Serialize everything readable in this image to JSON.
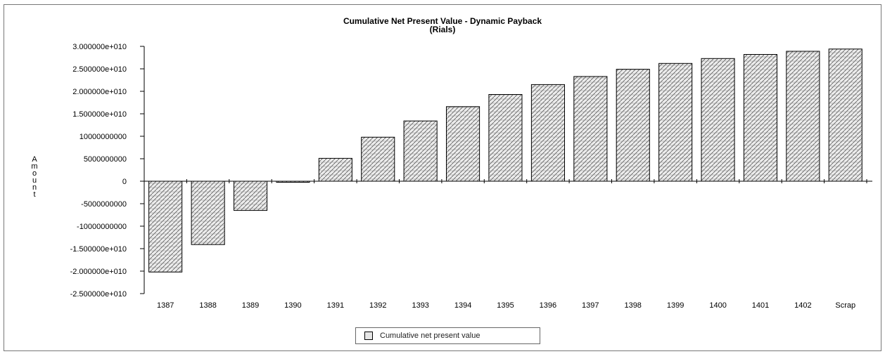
{
  "chart_data": {
    "type": "bar",
    "title": "Cumulative Net Present Value - Dynamic Payback",
    "subtitle": "(Rials)",
    "xlabel": "",
    "ylabel": "Amount",
    "categories": [
      "1387",
      "1388",
      "1389",
      "1390",
      "1391",
      "1392",
      "1393",
      "1394",
      "1395",
      "1396",
      "1397",
      "1398",
      "1399",
      "1400",
      "1401",
      "1402",
      "Scrap"
    ],
    "series": [
      {
        "name": "Cumulative net present value",
        "values": [
          -20200000000,
          -14100000000,
          -6500000000,
          -200000000,
          5100000000,
          9800000000,
          13400000000,
          16600000000,
          19300000000,
          21500000000,
          23300000000,
          24900000000,
          26200000000,
          27300000000,
          28200000000,
          28900000000,
          29400000000
        ]
      }
    ],
    "ylim": [
      -25000000000,
      30000000000
    ],
    "yticks": [
      {
        "value": 30000000000,
        "label": "3.000000e+010"
      },
      {
        "value": 25000000000,
        "label": "2.500000e+010"
      },
      {
        "value": 20000000000,
        "label": "2.000000e+010"
      },
      {
        "value": 15000000000,
        "label": "1.500000e+010"
      },
      {
        "value": 10000000000,
        "label": "10000000000"
      },
      {
        "value": 5000000000,
        "label": "5000000000"
      },
      {
        "value": 0,
        "label": "0"
      },
      {
        "value": -5000000000,
        "label": "-5000000000"
      },
      {
        "value": -10000000000,
        "label": "-10000000000"
      },
      {
        "value": -15000000000,
        "label": "-1.500000e+010"
      },
      {
        "value": -20000000000,
        "label": "-2.000000e+010"
      },
      {
        "value": -25000000000,
        "label": "-2.500000e+010"
      }
    ],
    "grid": false,
    "legend_position": "bottom-center",
    "colors": {
      "bar_fill": "#e6e6e6",
      "bar_stroke": "#000000",
      "axis": "#000000"
    }
  }
}
